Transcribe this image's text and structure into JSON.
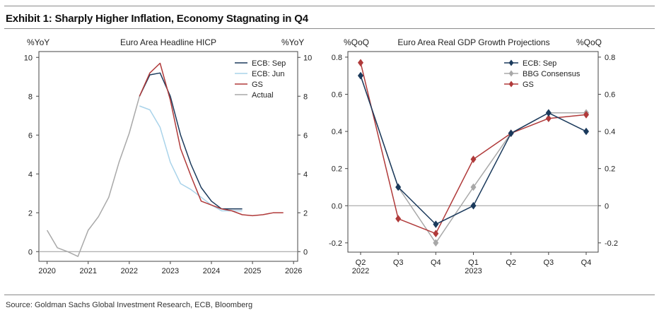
{
  "exhibit_title": "Exhibit 1: Sharply Higher Inflation, Economy Stagnating in Q4",
  "source": "Source: Goldman Sachs Global Investment Research, ECB, Bloomberg",
  "colors": {
    "ecb_sep": "#1b3a5c",
    "ecb_jun": "#a9d3ea",
    "gs": "#b03a3a",
    "actual": "#a8a8a8",
    "bbg": "#a8a8a8",
    "zero_line": "#999999"
  },
  "chart_data": [
    {
      "type": "line",
      "title": "Euro Area Headline HICP",
      "ylabel_left": "%YoY",
      "ylabel_right": "%YoY",
      "x_ticks": [
        "2020",
        "2021",
        "2022",
        "2023",
        "2024",
        "2025",
        "2026"
      ],
      "xlim": [
        2019.8,
        2026.1
      ],
      "ylim": [
        -0.5,
        10.3
      ],
      "y_ticks": [
        "0",
        "2",
        "4",
        "6",
        "8",
        "10"
      ],
      "y_tick_values": [
        0,
        2,
        4,
        6,
        8,
        10
      ],
      "legend_position": "top-right",
      "series": [
        {
          "name": "ECB: Sep",
          "color_key": "ecb_sep",
          "x": [
            2022.25,
            2022.5,
            2022.75,
            2023.0,
            2023.25,
            2023.5,
            2023.75,
            2024.0,
            2024.25,
            2024.5,
            2024.75
          ],
          "y": [
            8.0,
            9.1,
            9.2,
            8.0,
            6.0,
            4.5,
            3.3,
            2.6,
            2.2,
            2.2,
            2.2
          ]
        },
        {
          "name": "ECB: Jun",
          "color_key": "ecb_jun",
          "x": [
            2022.25,
            2022.5,
            2022.75,
            2023.0,
            2023.25,
            2023.5,
            2023.75,
            2024.0,
            2024.25,
            2024.5,
            2024.75
          ],
          "y": [
            7.5,
            7.3,
            6.4,
            4.6,
            3.5,
            3.2,
            2.8,
            2.4,
            2.1,
            2.1,
            2.1
          ]
        },
        {
          "name": "GS",
          "color_key": "gs",
          "x": [
            2022.25,
            2022.5,
            2022.75,
            2023.0,
            2023.25,
            2023.5,
            2023.75,
            2024.0,
            2024.25,
            2024.5,
            2024.75,
            2025.0,
            2025.25,
            2025.5,
            2025.75
          ],
          "y": [
            8.0,
            9.2,
            9.7,
            7.8,
            5.3,
            3.9,
            2.6,
            2.4,
            2.2,
            2.1,
            1.9,
            1.85,
            1.9,
            2.0,
            2.0
          ]
        },
        {
          "name": "Actual",
          "color_key": "actual",
          "x": [
            2020.0,
            2020.25,
            2020.5,
            2020.75,
            2021.0,
            2021.25,
            2021.5,
            2021.75,
            2022.0,
            2022.25
          ],
          "y": [
            1.1,
            0.2,
            0.0,
            -0.25,
            1.1,
            1.8,
            2.8,
            4.6,
            6.1,
            8.0
          ]
        }
      ]
    },
    {
      "type": "line",
      "title": "Euro Area Real GDP Growth Projections",
      "ylabel_left": "%QoQ",
      "ylabel_right": "%QoQ",
      "categories": [
        "Q2\n2022",
        "Q3",
        "Q4",
        "Q1\n2023",
        "Q2",
        "Q3",
        "Q4"
      ],
      "ylim": [
        -0.25,
        0.83
      ],
      "y_ticks": [
        "0.8",
        "0.6",
        "0.4",
        "0.2",
        "0.0",
        "-0.2"
      ],
      "y_tick_values": [
        0.8,
        0.6,
        0.4,
        0.2,
        0.0,
        -0.2
      ],
      "y_ticks_right": [
        "0.8",
        "0.6",
        "0.4",
        "0.2",
        "0",
        "-0.2"
      ],
      "legend_position": "top-right",
      "series": [
        {
          "name": "ECB: Sep",
          "color_key": "ecb_sep",
          "values": [
            0.7,
            0.1,
            -0.1,
            0.0,
            0.39,
            0.5,
            0.4
          ]
        },
        {
          "name": "BBG Consensus",
          "color_key": "bbg",
          "values": [
            0.7,
            0.1,
            -0.2,
            0.1,
            0.39,
            0.5,
            0.5
          ]
        },
        {
          "name": "GS",
          "color_key": "gs",
          "values": [
            0.77,
            -0.07,
            -0.15,
            0.25,
            0.39,
            0.47,
            0.49
          ]
        }
      ]
    }
  ]
}
